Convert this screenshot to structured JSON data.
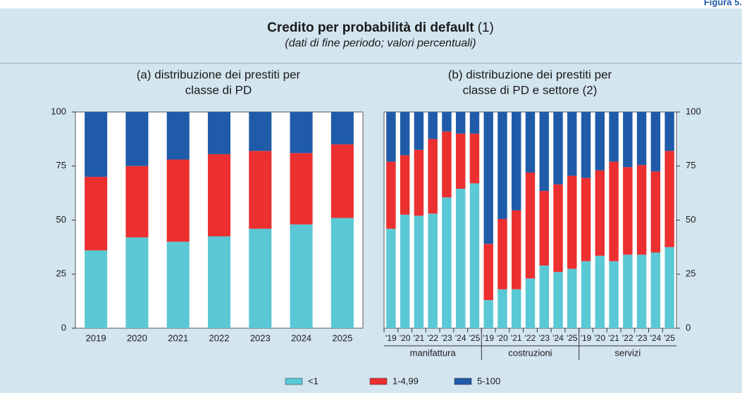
{
  "header": {
    "figure_label": "Figura 5.",
    "title": "Credito per probabilità di default",
    "note": "(1)",
    "subtitle": "(dati di fine periodo; valori percentuali)"
  },
  "chart_data": [
    {
      "type": "bar",
      "stacked": true,
      "title": [
        "(a) distribuzione dei prestiti per",
        "classe di PD"
      ],
      "categories": [
        "2019",
        "2020",
        "2021",
        "2022",
        "2023",
        "2024",
        "2025"
      ],
      "series": [
        {
          "name": "<1",
          "color": "#5bc8d6",
          "values": [
            36,
            42,
            40,
            42.5,
            46,
            48,
            51
          ]
        },
        {
          "name": "1-4,99",
          "color": "#ec2f2f",
          "values": [
            34,
            33,
            38,
            38,
            36,
            33,
            34
          ]
        },
        {
          "name": "5-100",
          "color": "#1f5ba8",
          "values": [
            30,
            25,
            22,
            19.5,
            18,
            19,
            15
          ]
        }
      ],
      "ylim": [
        0,
        100
      ],
      "yticks": [
        0,
        25,
        50,
        75,
        100
      ],
      "axis_side": "left"
    },
    {
      "type": "bar",
      "stacked": true,
      "title": [
        "(b) distribuzione dei prestiti per",
        "classe di PD e settore (2)"
      ],
      "categories": [
        "'19",
        "'20",
        "'21",
        "'22",
        "'23",
        "'24",
        "'25",
        "'19",
        "'20",
        "'21",
        "'22",
        "'23",
        "'24",
        "'25",
        "'19",
        "'20",
        "'21",
        "'22",
        "'23",
        "'24",
        "'25"
      ],
      "groups": [
        "manifattura",
        "costruzioni",
        "servizi"
      ],
      "series": [
        {
          "color": "#5bc8d6",
          "values": [
            46,
            52.5,
            52,
            53,
            60.5,
            64.5,
            67,
            13,
            18,
            18,
            23,
            29,
            26,
            27.5,
            31,
            33.5,
            31,
            34,
            34,
            35,
            37.5
          ]
        },
        {
          "color": "#ec2f2f",
          "values": [
            31,
            27.5,
            30.5,
            34.5,
            30.5,
            25.5,
            23,
            26,
            32.5,
            36.5,
            49,
            34.5,
            40.5,
            43,
            38.5,
            39.5,
            46,
            40.5,
            41.5,
            37.5,
            44.5
          ]
        },
        {
          "color": "#1f5ba8",
          "values": [
            23,
            20,
            17.5,
            12.5,
            9,
            10,
            10,
            61,
            49.5,
            45.5,
            28,
            36.5,
            33.5,
            29.5,
            30.5,
            27,
            23,
            25.5,
            24.5,
            27.5,
            18
          ]
        }
      ],
      "ylim": [
        0,
        100
      ],
      "yticks": [
        0,
        25,
        50,
        75,
        100
      ],
      "axis_side": "right"
    }
  ]
}
